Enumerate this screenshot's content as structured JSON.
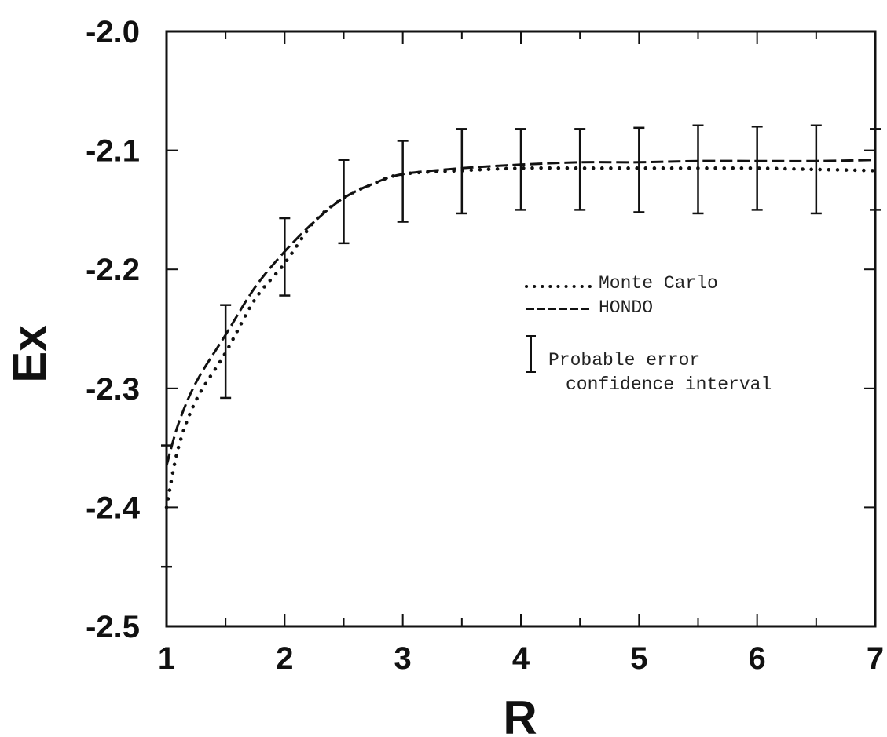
{
  "chart_data": {
    "type": "line",
    "title": "",
    "xlabel": "R",
    "ylabel": "Ex",
    "xlim": [
      1,
      7
    ],
    "ylim": [
      -2.5,
      -2.0
    ],
    "x_ticks": [
      1,
      2,
      3,
      4,
      5,
      6,
      7
    ],
    "x_tick_labels": [
      "1",
      "2",
      "3",
      "4",
      "5",
      "6",
      "7"
    ],
    "y_ticks": [
      -2.0,
      -2.1,
      -2.2,
      -2.3,
      -2.4,
      -2.5
    ],
    "y_tick_labels": [
      "-2.0",
      "-2.1",
      "-2.2",
      "-2.3",
      "-2.4",
      "-2.5"
    ],
    "grid": false,
    "legend_position": "right",
    "series": [
      {
        "name": "Monte Carlo",
        "style": "dotted",
        "x": [
          1.0,
          1.1,
          1.25,
          1.5,
          1.75,
          2.0,
          2.25,
          2.5,
          2.75,
          3.0,
          3.5,
          4.0,
          4.5,
          5.0,
          5.5,
          6.0,
          6.5,
          7.0
        ],
        "y": [
          -2.4,
          -2.35,
          -2.31,
          -2.27,
          -2.225,
          -2.195,
          -2.16,
          -2.14,
          -2.128,
          -2.12,
          -2.117,
          -2.115,
          -2.115,
          -2.115,
          -2.115,
          -2.115,
          -2.116,
          -2.117
        ]
      },
      {
        "name": "HONDO",
        "style": "dashed",
        "x": [
          1.0,
          1.1,
          1.25,
          1.5,
          1.75,
          2.0,
          2.25,
          2.5,
          2.75,
          3.0,
          3.5,
          4.0,
          4.5,
          5.0,
          5.5,
          6.0,
          6.5,
          7.0
        ],
        "y": [
          -2.365,
          -2.33,
          -2.295,
          -2.255,
          -2.215,
          -2.185,
          -2.16,
          -2.14,
          -2.128,
          -2.12,
          -2.115,
          -2.112,
          -2.11,
          -2.11,
          -2.109,
          -2.109,
          -2.109,
          -2.108
        ]
      }
    ],
    "error_bars": {
      "name": "Probable error confidence interval",
      "x": [
        1.0,
        1.5,
        2.0,
        2.5,
        3.0,
        3.5,
        4.0,
        4.5,
        5.0,
        5.5,
        6.0,
        6.5,
        7.0
      ],
      "lower": [
        -2.45,
        -2.308,
        -2.222,
        -2.178,
        -2.16,
        -2.153,
        -2.15,
        -2.15,
        -2.152,
        -2.153,
        -2.15,
        -2.153,
        -2.15
      ],
      "upper": [
        -2.348,
        -2.23,
        -2.157,
        -2.108,
        -2.092,
        -2.082,
        -2.082,
        -2.082,
        -2.081,
        -2.079,
        -2.08,
        -2.079,
        -2.082
      ]
    },
    "legend": {
      "monte_carlo_label": "Monte Carlo",
      "hondo_label": "HONDO",
      "error_label_line1": "Probable error",
      "error_label_line2": "confidence interval"
    }
  }
}
